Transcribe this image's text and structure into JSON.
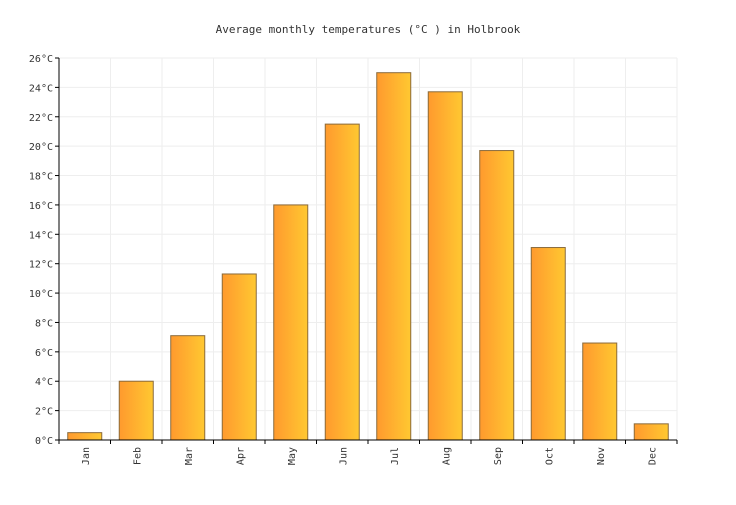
{
  "chart_data": {
    "type": "bar",
    "title": "Average monthly temperatures (°C ) in Holbrook",
    "xlabel": "",
    "ylabel": "",
    "categories": [
      "Jan",
      "Feb",
      "Mar",
      "Apr",
      "May",
      "Jun",
      "Jul",
      "Aug",
      "Sep",
      "Oct",
      "Nov",
      "Dec"
    ],
    "values": [
      0.5,
      4.0,
      7.1,
      11.3,
      16.0,
      21.5,
      25.0,
      23.7,
      19.7,
      13.1,
      6.6,
      1.1
    ],
    "ylim": [
      0,
      26
    ],
    "ytick_step": 2,
    "ytick_suffix": "°C",
    "grid": true,
    "legend": "none",
    "bar_gradient": [
      "#ff9a2e",
      "#ffc831"
    ],
    "bar_stroke": "#8a6a3a"
  }
}
